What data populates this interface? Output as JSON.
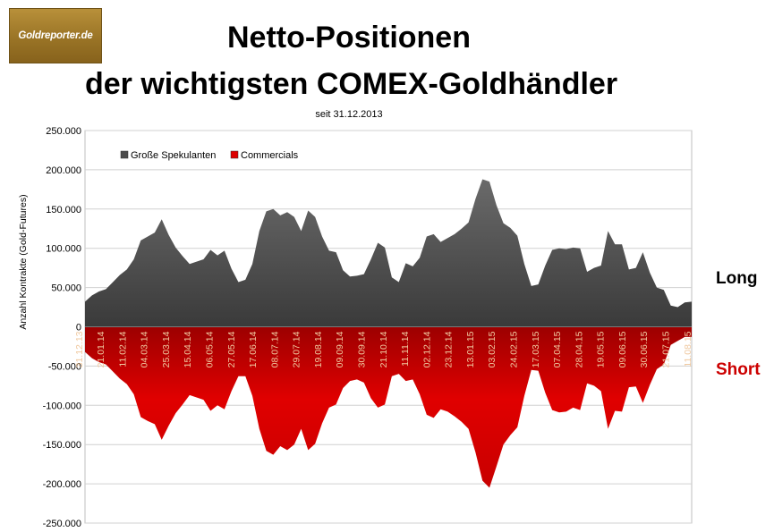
{
  "logo": {
    "text": "Goldreporter.de"
  },
  "title_line1": "Netto-Positionen",
  "title_line2": "der wichtigsten COMEX-Goldhändler",
  "subtitle": "seit 31.12.2013",
  "side_labels": {
    "long": "Long",
    "short": "Short"
  },
  "colors": {
    "long": "#4a4a4a",
    "short": "#dd0000",
    "short_label": "#cc0000",
    "date_label": "#f0c9a0",
    "grid": "#d0d0d0"
  },
  "chart_data": {
    "type": "area",
    "ylabel": "Anzahl Kontrakte  (Gold-Futures)",
    "ylim": [
      -250000,
      250000
    ],
    "yticks": [
      {
        "v": 250000,
        "label": "250.000"
      },
      {
        "v": 200000,
        "label": "200.000"
      },
      {
        "v": 150000,
        "label": "150.000"
      },
      {
        "v": 100000,
        "label": "100.000"
      },
      {
        "v": 50000,
        "label": "50.000"
      },
      {
        "v": 0,
        "label": "0"
      },
      {
        "v": -50000,
        "label": "-50.000"
      },
      {
        "v": -100000,
        "label": "-100.000"
      },
      {
        "v": -150000,
        "label": "-150.000"
      },
      {
        "v": -200000,
        "label": "-200.000"
      },
      {
        "v": -250000,
        "label": "-250.000"
      }
    ],
    "grid": true,
    "legend_position": "top-left",
    "date_labels": [
      "31.12.13",
      "21.01.14",
      "11.02.14",
      "04.03.14",
      "25.03.14",
      "15.04.14",
      "06.05.14",
      "27.05.14",
      "17.06.14",
      "08.07.14",
      "29.07.14",
      "19.08.14",
      "09.09.14",
      "30.09.14",
      "21.10.14",
      "11.11.14",
      "02.12.14",
      "23.12.14",
      "13.01.15",
      "03.02.15",
      "24.02.15",
      "17.03.15",
      "07.04.15",
      "28.04.15",
      "19.05.15",
      "09.06.15",
      "30.06.15",
      "21.07.15",
      "11.08.15"
    ],
    "series": [
      {
        "name": "Große Spekulanten",
        "values": [
          32000,
          40000,
          45000,
          48000,
          57000,
          66000,
          73000,
          86000,
          110000,
          115000,
          120000,
          137000,
          117000,
          101000,
          90000,
          80000,
          83000,
          86000,
          98000,
          91000,
          97000,
          74000,
          57000,
          60000,
          80000,
          122000,
          147000,
          150000,
          142000,
          146000,
          140000,
          122000,
          148000,
          140000,
          115000,
          97000,
          95000,
          72000,
          64000,
          65000,
          67000,
          86000,
          107000,
          101000,
          63000,
          57000,
          81000,
          77000,
          88000,
          115000,
          118000,
          108000,
          113000,
          118000,
          125000,
          133000,
          163000,
          188000,
          185000,
          155000,
          132000,
          126000,
          116000,
          80000,
          52000,
          54000,
          78000,
          98000,
          100000,
          99000,
          101000,
          100000,
          70000,
          75000,
          78000,
          122000,
          105000,
          105000,
          73000,
          75000,
          95000,
          69000,
          50000,
          47000,
          27000,
          25000,
          31000,
          32000
        ]
      },
      {
        "name": "Commercials",
        "values": [
          -32000,
          -40000,
          -45000,
          -48000,
          -57000,
          -66000,
          -73000,
          -86000,
          -115000,
          -120000,
          -124000,
          -144000,
          -126000,
          -110000,
          -99000,
          -87000,
          -90000,
          -93000,
          -107000,
          -100000,
          -105000,
          -82000,
          -63000,
          -63000,
          -88000,
          -130000,
          -158000,
          -163000,
          -152000,
          -157000,
          -150000,
          -130000,
          -157000,
          -149000,
          -123000,
          -103000,
          -99000,
          -78000,
          -69000,
          -67000,
          -71000,
          -91000,
          -103000,
          -99000,
          -63000,
          -60000,
          -69000,
          -67000,
          -86000,
          -112000,
          -116000,
          -105000,
          -108000,
          -114000,
          -121000,
          -130000,
          -160000,
          -196000,
          -205000,
          -178000,
          -150000,
          -138000,
          -128000,
          -88000,
          -55000,
          -56000,
          -84000,
          -106000,
          -109000,
          -108000,
          -103000,
          -106000,
          -72000,
          -75000,
          -82000,
          -130000,
          -107000,
          -108000,
          -77000,
          -76000,
          -97000,
          -74000,
          -54000,
          -48000,
          -23000,
          -18000,
          -13000,
          -13000
        ]
      }
    ]
  }
}
